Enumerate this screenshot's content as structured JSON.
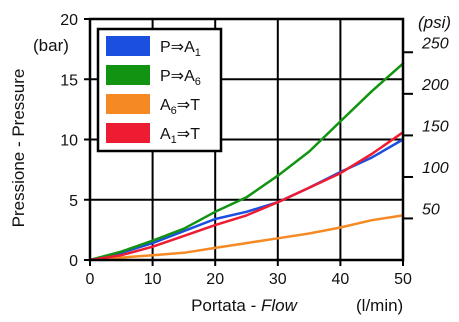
{
  "chart_data": {
    "type": "line",
    "xlabel_plain": "Portata - ",
    "xlabel_italic": "Flow",
    "x_unit": "(l/min)",
    "ylabel": "Pressione - Pressure",
    "y_unit": "(bar)",
    "y2_unit": "(psi)",
    "xlim": [
      0,
      50
    ],
    "ylim": [
      0,
      20
    ],
    "x_ticks": [
      "0",
      "10",
      "20",
      "30",
      "40",
      "50"
    ],
    "y_ticks": [
      "0",
      "5",
      "10",
      "15",
      "20"
    ],
    "y2_ticks": [
      "50",
      "100",
      "150",
      "200",
      "250"
    ],
    "y2_tick_values_bar": [
      3.45,
      6.89,
      10.34,
      13.79,
      17.24
    ],
    "grid": true,
    "legend_position": "top-left",
    "series": [
      {
        "name": "P⇒A1",
        "label_main": "P⇒A",
        "label_sub": "1",
        "color": "#1a4fe0",
        "x": [
          0,
          5,
          10,
          15,
          20,
          25,
          30,
          35,
          40,
          45,
          50
        ],
        "y": [
          0,
          0.6,
          1.4,
          2.4,
          3.4,
          4.0,
          4.8,
          6.0,
          7.3,
          8.5,
          10.0
        ]
      },
      {
        "name": "P⇒A6",
        "label_main": "P⇒A",
        "label_sub": "6",
        "color": "#129412",
        "x": [
          0,
          5,
          10,
          15,
          20,
          25,
          30,
          35,
          40,
          45,
          50
        ],
        "y": [
          0,
          0.7,
          1.6,
          2.6,
          4.0,
          5.2,
          7.0,
          9.0,
          11.5,
          14.0,
          16.3
        ]
      },
      {
        "name": "A6⇒T",
        "label_main": "A",
        "label_sub": "6",
        "label_tail": "⇒T",
        "color": "#f58a25",
        "x": [
          0,
          5,
          10,
          15,
          20,
          25,
          30,
          35,
          40,
          45,
          50
        ],
        "y": [
          0,
          0.2,
          0.4,
          0.6,
          1.0,
          1.4,
          1.8,
          2.2,
          2.7,
          3.3,
          3.7
        ]
      },
      {
        "name": "A1⇒T",
        "label_main": "A",
        "label_sub": "1",
        "label_tail": "⇒T",
        "color": "#ee1c33",
        "x": [
          0,
          5,
          10,
          15,
          20,
          25,
          30,
          35,
          40,
          45,
          50
        ],
        "y": [
          0,
          0.4,
          1.1,
          2.0,
          2.9,
          3.7,
          4.8,
          6.0,
          7.2,
          8.8,
          10.6
        ]
      }
    ]
  }
}
